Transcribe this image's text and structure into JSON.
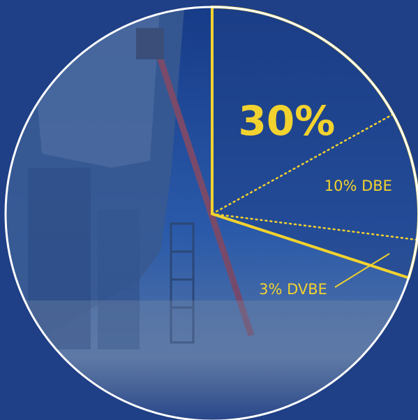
{
  "chart_data": {
    "type": "pie",
    "title": "",
    "slices": [
      {
        "label": "30%",
        "value": 30
      },
      {
        "label": "10% DBE",
        "value": 10
      },
      {
        "label": "3% DVBE",
        "value": 3
      }
    ],
    "highlight": "30%",
    "nested": "10% DBE and 3% DVBE are sub-shares inside the 30% slice"
  },
  "colors": {
    "background": "#1f3f86",
    "circle_outline": "#ffffff",
    "accent": "#f2d22e"
  }
}
